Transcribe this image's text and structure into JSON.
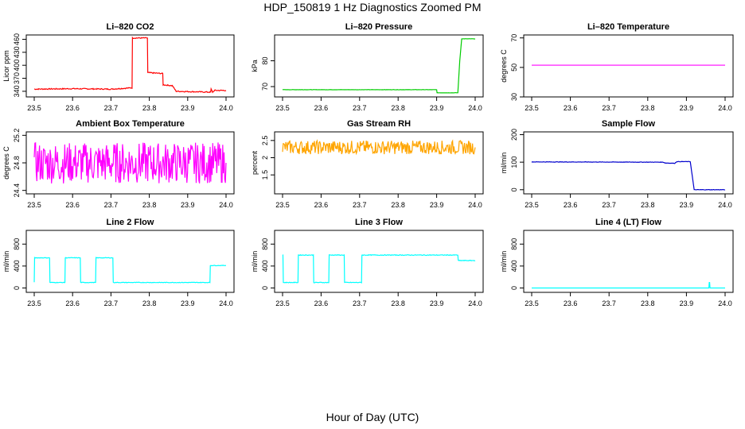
{
  "title": "HDP_150819  1 Hz Diagnostics Zoomed PM",
  "xlabel": "Hour of Day (UTC)",
  "chart_data": [
    {
      "type": "line",
      "title": "Li–820 CO2",
      "ylabel": "Licor ppm",
      "color": "#ff0000",
      "xlim": [
        23.5,
        24.0
      ],
      "ylim": [
        327,
        470
      ],
      "xticks": [
        "23.5",
        "23.6",
        "23.7",
        "23.8",
        "23.9",
        "24.0"
      ],
      "yticks": [
        340,
        370,
        400,
        430,
        460
      ],
      "noise": 1.2,
      "series": {
        "x": [
          23.5,
          23.6,
          23.7,
          23.755,
          23.756,
          23.795,
          23.796,
          23.835,
          23.836,
          23.86,
          23.87,
          23.96,
          23.961,
          23.965,
          23.97,
          24.0
        ],
        "y": [
          345,
          346,
          345,
          348,
          463,
          463,
          383,
          381,
          355,
          353,
          340,
          338,
          345,
          338,
          342,
          342
        ]
      }
    },
    {
      "type": "line",
      "title": "Li–820 Pressure",
      "ylabel": "kPa",
      "color": "#00cc00",
      "xlim": [
        23.5,
        24.0
      ],
      "ylim": [
        66,
        90
      ],
      "xticks": [
        "23.5",
        "23.6",
        "23.7",
        "23.8",
        "23.9",
        "24.0"
      ],
      "yticks": [
        70,
        80
      ],
      "noise": 0.05,
      "series": {
        "x": [
          23.5,
          23.9,
          23.901,
          23.955,
          23.96,
          23.965,
          23.98,
          24.0
        ],
        "y": [
          68.8,
          68.8,
          67.6,
          67.6,
          80,
          88.5,
          88.5,
          88.5
        ]
      }
    },
    {
      "type": "line",
      "title": "Li–820 Temperature",
      "ylabel": "degrees C",
      "color": "#ff00ff",
      "xlim": [
        23.5,
        24.0
      ],
      "ylim": [
        30,
        72
      ],
      "xticks": [
        "23.5",
        "23.6",
        "23.7",
        "23.8",
        "23.9",
        "24.0"
      ],
      "yticks": [
        30,
        50,
        70
      ],
      "noise": 0,
      "series": {
        "x": [
          23.5,
          24.0
        ],
        "y": [
          51.5,
          51.5
        ]
      }
    },
    {
      "type": "line",
      "title": "Ambient Box Temperature",
      "ylabel": "degrees C",
      "color": "#ff00ff",
      "xlim": [
        23.5,
        24.0
      ],
      "ylim": [
        24.35,
        25.25
      ],
      "xticks": [
        "23.5",
        "23.6",
        "23.7",
        "23.8",
        "23.9",
        "24.0"
      ],
      "yticks": [
        24.4,
        24.8,
        25.2
      ],
      "noise": 0.3,
      "series": {
        "x": [
          23.5,
          24.0
        ],
        "y": [
          24.8,
          24.8
        ]
      }
    },
    {
      "type": "line",
      "title": "Gas Stream RH",
      "ylabel": "percent",
      "color": "#ffa500",
      "xlim": [
        23.5,
        24.0
      ],
      "ylim": [
        0.95,
        2.75
      ],
      "xticks": [
        "23.5",
        "23.6",
        "23.7",
        "23.8",
        "23.9",
        "24.0"
      ],
      "yticks": [
        1.5,
        2.0,
        2.5
      ],
      "noise": 0.2,
      "series": {
        "x": [
          23.5,
          24.0
        ],
        "y": [
          2.3,
          2.3
        ]
      }
    },
    {
      "type": "line",
      "title": "Sample Flow",
      "ylabel": "ml/min",
      "color": "#0000cd",
      "xlim": [
        23.5,
        24.0
      ],
      "ylim": [
        -15,
        210
      ],
      "xticks": [
        "23.5",
        "23.6",
        "23.7",
        "23.8",
        "23.9",
        "24.0"
      ],
      "yticks": [
        0,
        100,
        200
      ],
      "noise": 0.8,
      "series": {
        "x": [
          23.5,
          23.84,
          23.845,
          23.87,
          23.875,
          23.91,
          23.92,
          24.0
        ],
        "y": [
          101,
          100,
          97,
          96,
          102,
          102,
          0,
          0
        ]
      }
    },
    {
      "type": "line",
      "title": "Line 2 Flow",
      "ylabel": "ml/min",
      "color": "#00ffff",
      "xlim": [
        23.5,
        24.0
      ],
      "ylim": [
        -80,
        1050
      ],
      "xticks": [
        "23.5",
        "23.6",
        "23.7",
        "23.8",
        "23.9",
        "24.0"
      ],
      "yticks": [
        0,
        400,
        800
      ],
      "noise": 5,
      "series": {
        "x": [
          23.5,
          23.501,
          23.54,
          23.541,
          23.58,
          23.581,
          23.62,
          23.621,
          23.66,
          23.661,
          23.705,
          23.706,
          23.958,
          23.959,
          24.0
        ],
        "y": [
          100,
          550,
          550,
          100,
          100,
          550,
          550,
          100,
          100,
          550,
          550,
          100,
          100,
          410,
          410
        ]
      }
    },
    {
      "type": "line",
      "title": "Line 3 Flow",
      "ylabel": "ml/min",
      "color": "#00ffff",
      "xlim": [
        23.5,
        24.0
      ],
      "ylim": [
        -80,
        1050
      ],
      "xticks": [
        "23.5",
        "23.6",
        "23.7",
        "23.8",
        "23.9",
        "24.0"
      ],
      "yticks": [
        0,
        400,
        800
      ],
      "noise": 6,
      "series": {
        "x": [
          23.5,
          23.501,
          23.502,
          23.54,
          23.541,
          23.58,
          23.581,
          23.62,
          23.621,
          23.66,
          23.661,
          23.705,
          23.706,
          23.955,
          23.956,
          24.0
        ],
        "y": [
          600,
          600,
          100,
          100,
          600,
          600,
          100,
          100,
          600,
          600,
          100,
          100,
          600,
          600,
          500,
          500
        ]
      }
    },
    {
      "type": "line",
      "title": "Line 4 (LT) Flow",
      "ylabel": "ml/min",
      "color": "#00ffff",
      "xlim": [
        23.5,
        24.0
      ],
      "ylim": [
        -80,
        1050
      ],
      "xticks": [
        "23.5",
        "23.6",
        "23.7",
        "23.8",
        "23.9",
        "24.0"
      ],
      "yticks": [
        0,
        400,
        800
      ],
      "noise": 0,
      "series": {
        "x": [
          23.5,
          23.958,
          23.959,
          23.96,
          23.961,
          24.0
        ],
        "y": [
          0,
          0,
          100,
          100,
          0,
          0
        ]
      }
    }
  ]
}
